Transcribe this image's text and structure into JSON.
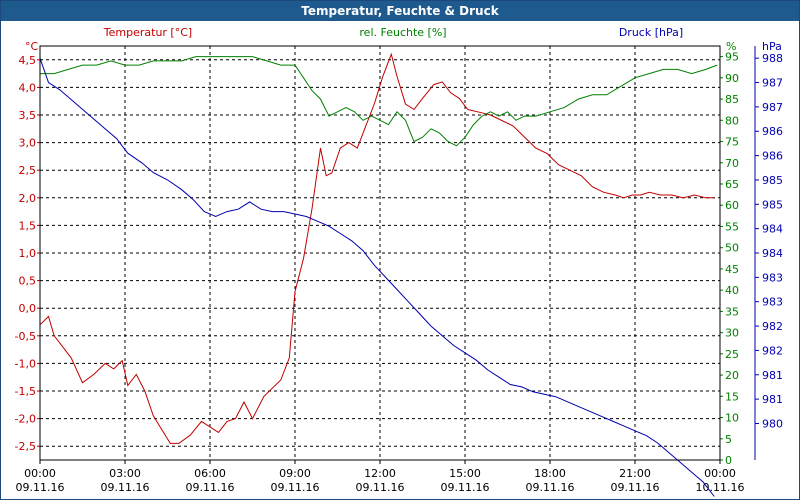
{
  "window": {
    "title": "Temperatur, Feuchte & Druck"
  },
  "colors": {
    "temperature": "#c00000",
    "humidity": "#008000",
    "pressure": "#0000b0",
    "grid": "#000000",
    "title_bar": "#1e5a8e"
  },
  "chart_data": {
    "type": "line",
    "title": "Temperatur, Feuchte & Druck",
    "grid": true,
    "x_ticks": [
      {
        "time": "00:00",
        "date": "09.11.16"
      },
      {
        "time": "03:00",
        "date": "09.11.16"
      },
      {
        "time": "06:00",
        "date": "09.11.16"
      },
      {
        "time": "09:00",
        "date": "09.11.16"
      },
      {
        "time": "12:00",
        "date": "09.11.16"
      },
      {
        "time": "15:00",
        "date": "09.11.16"
      },
      {
        "time": "18:00",
        "date": "09.11.16"
      },
      {
        "time": "21:00",
        "date": "09.11.16"
      },
      {
        "time": "00:00",
        "date": "10.11.16"
      }
    ],
    "x_range_hours": [
      0,
      24
    ],
    "axes": {
      "temperature": {
        "label": "Temperatur [°C]",
        "unit": "°C",
        "range": [
          -2.75,
          4.75
        ],
        "ticks": [
          "4,5",
          "4,0",
          "3,5",
          "3,0",
          "2,5",
          "2,0",
          "1,5",
          "1,0",
          "0,5",
          "0,0",
          "-0,5",
          "-1,0",
          "-1,5",
          "-2,0",
          "-2,5"
        ]
      },
      "humidity": {
        "label": "rel. Feuchte [%]",
        "unit": "%",
        "range": [
          0,
          97.5
        ],
        "ticks": [
          "95",
          "90",
          "85",
          "80",
          "75",
          "70",
          "65",
          "60",
          "55",
          "50",
          "45",
          "40",
          "35",
          "30",
          "25",
          "20",
          "15",
          "10",
          "5",
          "0"
        ]
      },
      "pressure": {
        "label": "Druck [hPa]",
        "unit": "hPa",
        "range": [
          979.75,
          988.25
        ],
        "ticks": [
          "988",
          "987",
          "987",
          "986",
          "986",
          "985",
          "985",
          "984",
          "984",
          "983",
          "983",
          "982",
          "982",
          "981",
          "981",
          "980"
        ]
      }
    },
    "series": [
      {
        "name": "Temperatur",
        "axis": "temperature",
        "x": [
          0,
          0.3,
          0.5,
          0.8,
          1.1,
          1.5,
          1.9,
          2.3,
          2.6,
          2.9,
          3.1,
          3.4,
          3.7,
          4.0,
          4.3,
          4.6,
          4.9,
          5.3,
          5.7,
          6.0,
          6.3,
          6.6,
          6.9,
          7.2,
          7.5,
          7.9,
          8.2,
          8.5,
          8.8,
          9.0,
          9.3,
          9.6,
          9.9,
          10.1,
          10.3,
          10.6,
          10.9,
          11.2,
          11.5,
          11.8,
          12.1,
          12.4,
          12.6,
          12.9,
          13.2,
          13.5,
          13.9,
          14.2,
          14.5,
          14.8,
          15.1,
          15.5,
          15.9,
          16.3,
          16.7,
          17.1,
          17.5,
          17.9,
          18.3,
          18.7,
          19.1,
          19.5,
          19.9,
          20.3,
          20.6,
          20.9,
          21.2,
          21.5,
          21.9,
          22.3,
          22.7,
          23.1,
          23.5,
          23.8
        ],
        "values": [
          -0.3,
          -0.15,
          -0.5,
          -0.7,
          -0.9,
          -1.35,
          -1.2,
          -1.0,
          -1.1,
          -0.95,
          -1.4,
          -1.2,
          -1.5,
          -1.95,
          -2.2,
          -2.45,
          -2.45,
          -2.3,
          -2.05,
          -2.15,
          -2.25,
          -2.05,
          -2.0,
          -1.7,
          -2.0,
          -1.6,
          -1.45,
          -1.3,
          -0.9,
          0.3,
          0.9,
          1.8,
          2.9,
          2.4,
          2.45,
          2.9,
          3.0,
          2.9,
          3.3,
          3.7,
          4.2,
          4.6,
          4.2,
          3.7,
          3.6,
          3.8,
          4.05,
          4.1,
          3.9,
          3.8,
          3.6,
          3.55,
          3.5,
          3.4,
          3.3,
          3.1,
          2.9,
          2.8,
          2.6,
          2.5,
          2.4,
          2.2,
          2.1,
          2.05,
          2.0,
          2.05,
          2.05,
          2.1,
          2.05,
          2.05,
          2.0,
          2.05,
          2.0,
          2.0
        ]
      },
      {
        "name": "rel. Feuchte",
        "axis": "humidity",
        "x": [
          0,
          0.5,
          1.0,
          1.5,
          2.0,
          2.5,
          3.0,
          3.5,
          4.0,
          4.5,
          5.0,
          5.5,
          6.0,
          6.5,
          7.0,
          7.5,
          8.0,
          8.5,
          9.0,
          9.3,
          9.6,
          9.9,
          10.2,
          10.5,
          10.8,
          11.1,
          11.4,
          11.7,
          12.0,
          12.3,
          12.6,
          12.9,
          13.2,
          13.5,
          13.8,
          14.1,
          14.4,
          14.7,
          15.0,
          15.3,
          15.6,
          15.9,
          16.2,
          16.5,
          16.8,
          17.1,
          17.5,
          18.0,
          18.5,
          19.0,
          19.5,
          20.0,
          20.5,
          21.0,
          21.5,
          22.0,
          22.5,
          23.0,
          23.5,
          23.9
        ],
        "values": [
          91,
          91,
          92,
          93,
          93,
          94,
          93,
          93,
          94,
          94,
          94,
          95,
          95,
          95,
          95,
          95,
          94,
          93,
          93,
          90,
          87,
          85,
          81,
          82,
          83,
          82,
          80,
          81,
          80,
          79,
          82,
          80,
          75,
          76,
          78,
          77,
          75,
          74,
          76,
          79,
          81,
          82,
          81,
          82,
          80,
          81,
          81,
          82,
          83,
          85,
          86,
          86,
          88,
          90,
          91,
          92,
          92,
          91,
          92,
          93
        ]
      },
      {
        "name": "Druck",
        "axis": "pressure",
        "x": [
          0,
          0.3,
          0.7,
          1.2,
          1.7,
          2.2,
          2.7,
          3.1,
          3.6,
          4.0,
          4.5,
          5.0,
          5.4,
          5.8,
          6.2,
          6.6,
          7.0,
          7.4,
          7.8,
          8.2,
          8.6,
          9.0,
          9.4,
          9.8,
          10.2,
          10.6,
          11.0,
          11.4,
          11.8,
          12.2,
          12.6,
          13.0,
          13.4,
          13.8,
          14.2,
          14.6,
          15.0,
          15.4,
          15.8,
          16.2,
          16.6,
          17.0,
          17.4,
          17.8,
          18.2,
          18.6,
          19.0,
          19.4,
          19.8,
          20.2,
          20.6,
          21.0,
          21.4,
          21.8,
          22.2,
          22.6,
          23.0,
          23.4,
          23.8
        ],
        "values": [
          988.0,
          987.5,
          987.35,
          987.1,
          986.85,
          986.6,
          986.35,
          986.05,
          985.85,
          985.65,
          985.5,
          985.3,
          985.1,
          984.85,
          984.75,
          984.85,
          984.9,
          985.05,
          984.9,
          984.85,
          984.85,
          984.8,
          984.75,
          984.65,
          984.55,
          984.4,
          984.25,
          984.05,
          983.75,
          983.5,
          983.25,
          983.0,
          982.75,
          982.5,
          982.3,
          982.1,
          981.95,
          981.8,
          981.6,
          981.45,
          981.3,
          981.25,
          981.15,
          981.1,
          981.05,
          980.95,
          980.85,
          980.75,
          980.65,
          980.55,
          980.45,
          980.35,
          980.25,
          980.1,
          979.9,
          979.7,
          979.5,
          979.3,
          979.0
        ]
      }
    ]
  }
}
